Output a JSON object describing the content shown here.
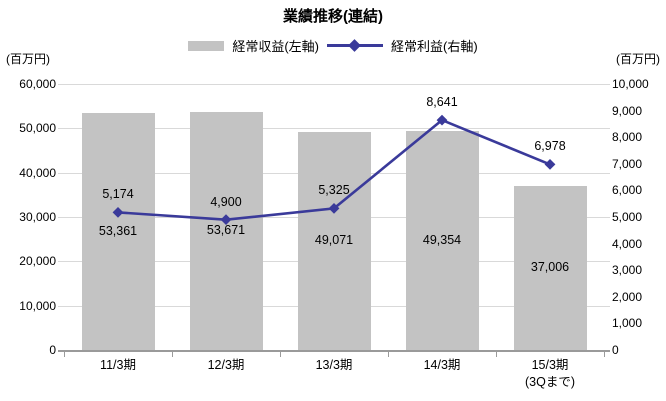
{
  "chart_data": {
    "type": "bar+line",
    "title": "業績推移(連結)",
    "unit_left": "(百万円)",
    "unit_right": "(百万円)",
    "categories": [
      "11/3期",
      "12/3期",
      "13/3期",
      "14/3期",
      "15/3期"
    ],
    "category_sublabels": [
      "",
      "",
      "",
      "",
      "(3Qまで)"
    ],
    "series": [
      {
        "name": "経常収益(左軸)",
        "type": "bar",
        "axis": "left",
        "color": "#c3c3c3",
        "values": [
          53361,
          53671,
          49071,
          49354,
          37006
        ],
        "labels": [
          "53,361",
          "53,671",
          "49,071",
          "49,354",
          "37,006"
        ]
      },
      {
        "name": "経常利益(右軸)",
        "type": "line",
        "axis": "right",
        "color": "#3a3a9a",
        "marker": "diamond",
        "values": [
          5174,
          4900,
          5325,
          8641,
          6978
        ],
        "labels": [
          "5,174",
          "4,900",
          "5,325",
          "8,641",
          "6,978"
        ]
      }
    ],
    "left_axis": {
      "min": 0,
      "max": 60000,
      "step": 10000
    },
    "right_axis": {
      "min": 0,
      "max": 10000,
      "step": 1000
    },
    "grid": "horizontal gridlines at every 10,000 left-axis units",
    "legend_position": "top-center",
    "colors": {
      "grid": "#d9d9d9",
      "axis": "#9a9a9a",
      "text": "#000000",
      "background": "#ffffff"
    }
  }
}
